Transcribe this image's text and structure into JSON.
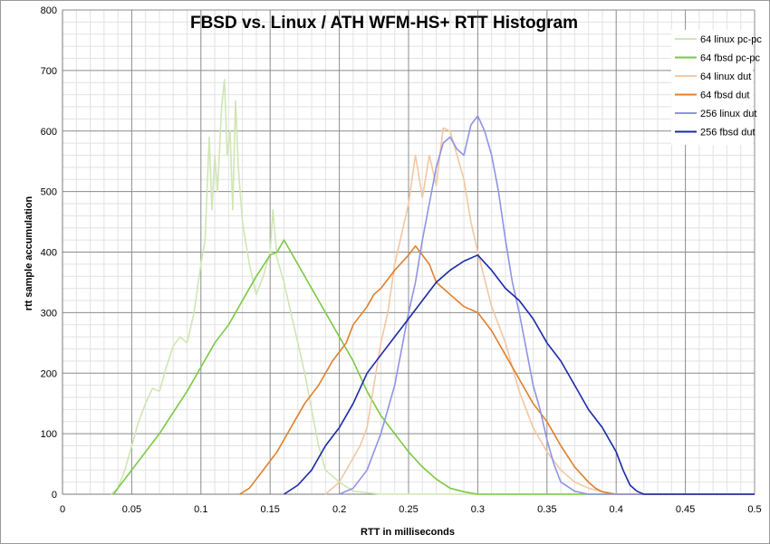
{
  "chart_data": {
    "type": "line",
    "title": "FBSD vs. Linux / ATH WFM-HS+ RTT Histogram",
    "xlabel": "RTT in milliseconds",
    "ylabel": "rtt sample accumulation",
    "xlim": [
      0,
      0.5
    ],
    "ylim": [
      0,
      800
    ],
    "x_ticks": [
      "0",
      "0.05",
      "0.1",
      "0.15",
      "0.2",
      "0.25",
      "0.3",
      "0.35",
      "0.4",
      "0.45",
      "0.5"
    ],
    "y_ticks": [
      "0",
      "100",
      "200",
      "300",
      "400",
      "500",
      "600",
      "700",
      "800"
    ],
    "grid": true,
    "legend_position": "top-right",
    "series": [
      {
        "name": "64 linux pc-pc",
        "color": "#cfe6b4",
        "points": [
          [
            0.035,
            0
          ],
          [
            0.04,
            10
          ],
          [
            0.045,
            40
          ],
          [
            0.05,
            80
          ],
          [
            0.055,
            120
          ],
          [
            0.06,
            150
          ],
          [
            0.065,
            175
          ],
          [
            0.07,
            170
          ],
          [
            0.075,
            210
          ],
          [
            0.08,
            245
          ],
          [
            0.085,
            260
          ],
          [
            0.09,
            250
          ],
          [
            0.095,
            300
          ],
          [
            0.1,
            380
          ],
          [
            0.103,
            420
          ],
          [
            0.106,
            590
          ],
          [
            0.108,
            470
          ],
          [
            0.11,
            560
          ],
          [
            0.112,
            500
          ],
          [
            0.115,
            640
          ],
          [
            0.117,
            685
          ],
          [
            0.119,
            560
          ],
          [
            0.121,
            600
          ],
          [
            0.123,
            470
          ],
          [
            0.125,
            650
          ],
          [
            0.127,
            540
          ],
          [
            0.13,
            450
          ],
          [
            0.135,
            380
          ],
          [
            0.14,
            330
          ],
          [
            0.145,
            360
          ],
          [
            0.15,
            400
          ],
          [
            0.152,
            470
          ],
          [
            0.155,
            390
          ],
          [
            0.16,
            350
          ],
          [
            0.165,
            300
          ],
          [
            0.17,
            250
          ],
          [
            0.175,
            200
          ],
          [
            0.18,
            140
          ],
          [
            0.185,
            80
          ],
          [
            0.19,
            40
          ],
          [
            0.2,
            20
          ],
          [
            0.21,
            5
          ],
          [
            0.23,
            0
          ],
          [
            0.5,
            0
          ]
        ]
      },
      {
        "name": "64 fbsd pc-pc",
        "color": "#7ac943",
        "points": [
          [
            0.037,
            0
          ],
          [
            0.04,
            10
          ],
          [
            0.05,
            40
          ],
          [
            0.06,
            70
          ],
          [
            0.07,
            100
          ],
          [
            0.08,
            135
          ],
          [
            0.09,
            170
          ],
          [
            0.1,
            210
          ],
          [
            0.11,
            250
          ],
          [
            0.12,
            280
          ],
          [
            0.13,
            320
          ],
          [
            0.14,
            360
          ],
          [
            0.15,
            395
          ],
          [
            0.155,
            400
          ],
          [
            0.16,
            420
          ],
          [
            0.165,
            400
          ],
          [
            0.17,
            380
          ],
          [
            0.18,
            340
          ],
          [
            0.19,
            300
          ],
          [
            0.2,
            260
          ],
          [
            0.21,
            220
          ],
          [
            0.22,
            170
          ],
          [
            0.23,
            130
          ],
          [
            0.24,
            100
          ],
          [
            0.25,
            70
          ],
          [
            0.26,
            45
          ],
          [
            0.27,
            25
          ],
          [
            0.28,
            10
          ],
          [
            0.29,
            4
          ],
          [
            0.3,
            0
          ],
          [
            0.5,
            0
          ]
        ]
      },
      {
        "name": "64 linux dut",
        "color": "#f3c7a2",
        "points": [
          [
            0.19,
            0
          ],
          [
            0.2,
            20
          ],
          [
            0.21,
            60
          ],
          [
            0.215,
            80
          ],
          [
            0.22,
            110
          ],
          [
            0.225,
            180
          ],
          [
            0.23,
            250
          ],
          [
            0.235,
            300
          ],
          [
            0.24,
            380
          ],
          [
            0.245,
            430
          ],
          [
            0.25,
            480
          ],
          [
            0.255,
            560
          ],
          [
            0.26,
            490
          ],
          [
            0.265,
            560
          ],
          [
            0.27,
            510
          ],
          [
            0.275,
            605
          ],
          [
            0.28,
            600
          ],
          [
            0.285,
            560
          ],
          [
            0.29,
            520
          ],
          [
            0.295,
            450
          ],
          [
            0.3,
            400
          ],
          [
            0.31,
            310
          ],
          [
            0.32,
            250
          ],
          [
            0.33,
            170
          ],
          [
            0.34,
            110
          ],
          [
            0.35,
            70
          ],
          [
            0.36,
            40
          ],
          [
            0.37,
            20
          ],
          [
            0.38,
            10
          ],
          [
            0.39,
            4
          ],
          [
            0.4,
            0
          ],
          [
            0.5,
            0
          ]
        ]
      },
      {
        "name": "64 fbsd dut",
        "color": "#e07f2b",
        "points": [
          [
            0.128,
            0
          ],
          [
            0.135,
            10
          ],
          [
            0.145,
            40
          ],
          [
            0.155,
            70
          ],
          [
            0.165,
            110
          ],
          [
            0.175,
            150
          ],
          [
            0.185,
            180
          ],
          [
            0.195,
            220
          ],
          [
            0.205,
            250
          ],
          [
            0.21,
            280
          ],
          [
            0.22,
            310
          ],
          [
            0.225,
            330
          ],
          [
            0.23,
            340
          ],
          [
            0.24,
            370
          ],
          [
            0.25,
            395
          ],
          [
            0.255,
            410
          ],
          [
            0.26,
            395
          ],
          [
            0.265,
            380
          ],
          [
            0.27,
            350
          ],
          [
            0.28,
            330
          ],
          [
            0.29,
            310
          ],
          [
            0.3,
            300
          ],
          [
            0.31,
            270
          ],
          [
            0.32,
            230
          ],
          [
            0.33,
            190
          ],
          [
            0.34,
            150
          ],
          [
            0.35,
            120
          ],
          [
            0.36,
            80
          ],
          [
            0.37,
            45
          ],
          [
            0.38,
            20
          ],
          [
            0.385,
            10
          ],
          [
            0.39,
            4
          ],
          [
            0.4,
            0
          ],
          [
            0.5,
            0
          ]
        ]
      },
      {
        "name": "256 linux dut",
        "color": "#8f93e6",
        "points": [
          [
            0.2,
            0
          ],
          [
            0.21,
            10
          ],
          [
            0.22,
            40
          ],
          [
            0.225,
            70
          ],
          [
            0.23,
            100
          ],
          [
            0.235,
            140
          ],
          [
            0.24,
            180
          ],
          [
            0.245,
            240
          ],
          [
            0.25,
            300
          ],
          [
            0.255,
            350
          ],
          [
            0.26,
            420
          ],
          [
            0.265,
            480
          ],
          [
            0.27,
            540
          ],
          [
            0.275,
            580
          ],
          [
            0.28,
            590
          ],
          [
            0.285,
            570
          ],
          [
            0.29,
            560
          ],
          [
            0.295,
            610
          ],
          [
            0.3,
            625
          ],
          [
            0.305,
            600
          ],
          [
            0.31,
            560
          ],
          [
            0.315,
            500
          ],
          [
            0.32,
            420
          ],
          [
            0.325,
            350
          ],
          [
            0.33,
            300
          ],
          [
            0.335,
            240
          ],
          [
            0.34,
            180
          ],
          [
            0.345,
            140
          ],
          [
            0.35,
            90
          ],
          [
            0.355,
            50
          ],
          [
            0.36,
            20
          ],
          [
            0.37,
            5
          ],
          [
            0.38,
            0
          ],
          [
            0.5,
            0
          ]
        ]
      },
      {
        "name": "256 fbsd dut",
        "color": "#1a2aa8",
        "points": [
          [
            0.16,
            0
          ],
          [
            0.17,
            15
          ],
          [
            0.18,
            40
          ],
          [
            0.19,
            80
          ],
          [
            0.2,
            110
          ],
          [
            0.21,
            150
          ],
          [
            0.22,
            200
          ],
          [
            0.23,
            230
          ],
          [
            0.24,
            260
          ],
          [
            0.25,
            290
          ],
          [
            0.26,
            320
          ],
          [
            0.27,
            350
          ],
          [
            0.28,
            370
          ],
          [
            0.29,
            385
          ],
          [
            0.3,
            395
          ],
          [
            0.31,
            370
          ],
          [
            0.32,
            340
          ],
          [
            0.33,
            320
          ],
          [
            0.34,
            290
          ],
          [
            0.35,
            250
          ],
          [
            0.36,
            220
          ],
          [
            0.37,
            180
          ],
          [
            0.38,
            140
          ],
          [
            0.39,
            110
          ],
          [
            0.4,
            70
          ],
          [
            0.405,
            40
          ],
          [
            0.41,
            15
          ],
          [
            0.415,
            5
          ],
          [
            0.42,
            0
          ],
          [
            0.5,
            0
          ]
        ]
      }
    ]
  }
}
